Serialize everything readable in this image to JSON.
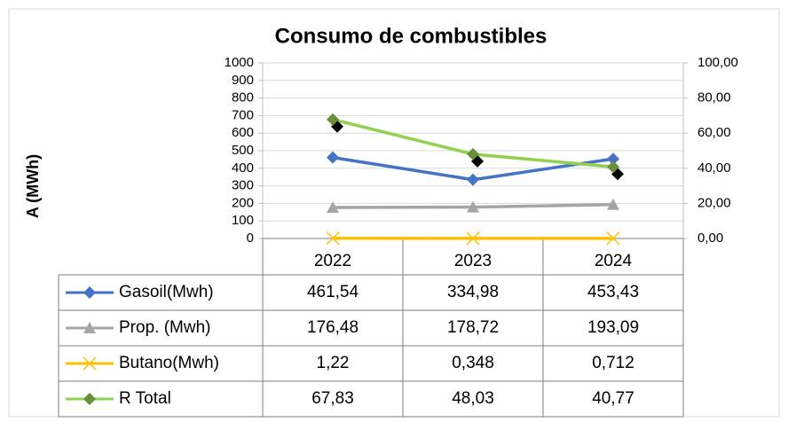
{
  "chart_data": {
    "type": "line",
    "title": "Consumo de combustibles",
    "ylabel": "A (MWh)",
    "categories": [
      "2022",
      "2023",
      "2024"
    ],
    "ylim": [
      0,
      1000
    ],
    "yticks": [
      0,
      100,
      200,
      300,
      400,
      500,
      600,
      700,
      800,
      900,
      1000
    ],
    "y2lim": [
      0,
      100
    ],
    "y2ticks": [
      {
        "value": 0,
        "label": "0,00"
      },
      {
        "value": 20,
        "label": "20,00"
      },
      {
        "value": 40,
        "label": "40,00"
      },
      {
        "value": 60,
        "label": "60,00"
      },
      {
        "value": 80,
        "label": "80,00"
      },
      {
        "value": 100,
        "label": "100,00"
      }
    ],
    "grid": true,
    "series": [
      {
        "name": "Gasoil(Mwh)",
        "color": "#4472c4",
        "marker": "diamond",
        "values": [
          461.54,
          334.98,
          453.43
        ],
        "value_labels": [
          "461,54",
          "334,98",
          "453,43"
        ]
      },
      {
        "name": "Prop. (Mwh)",
        "color": "#a5a5a5",
        "marker": "triangle",
        "values": [
          176.48,
          178.72,
          193.09
        ],
        "value_labels": [
          "176,48",
          "178,72",
          "193,09"
        ]
      },
      {
        "name": "Butano(Mwh)",
        "color": "#ffc000",
        "marker": "x",
        "values": [
          1.22,
          0.348,
          0.712
        ],
        "value_labels": [
          "1,22",
          "0,348",
          "0,712"
        ]
      },
      {
        "name": "R Total",
        "color": "#92d050",
        "marker": "diamond",
        "axis": "y2",
        "values": [
          67.83,
          48.03,
          40.77
        ],
        "value_labels": [
          "67,83",
          "48,03",
          "40,77"
        ]
      }
    ]
  }
}
